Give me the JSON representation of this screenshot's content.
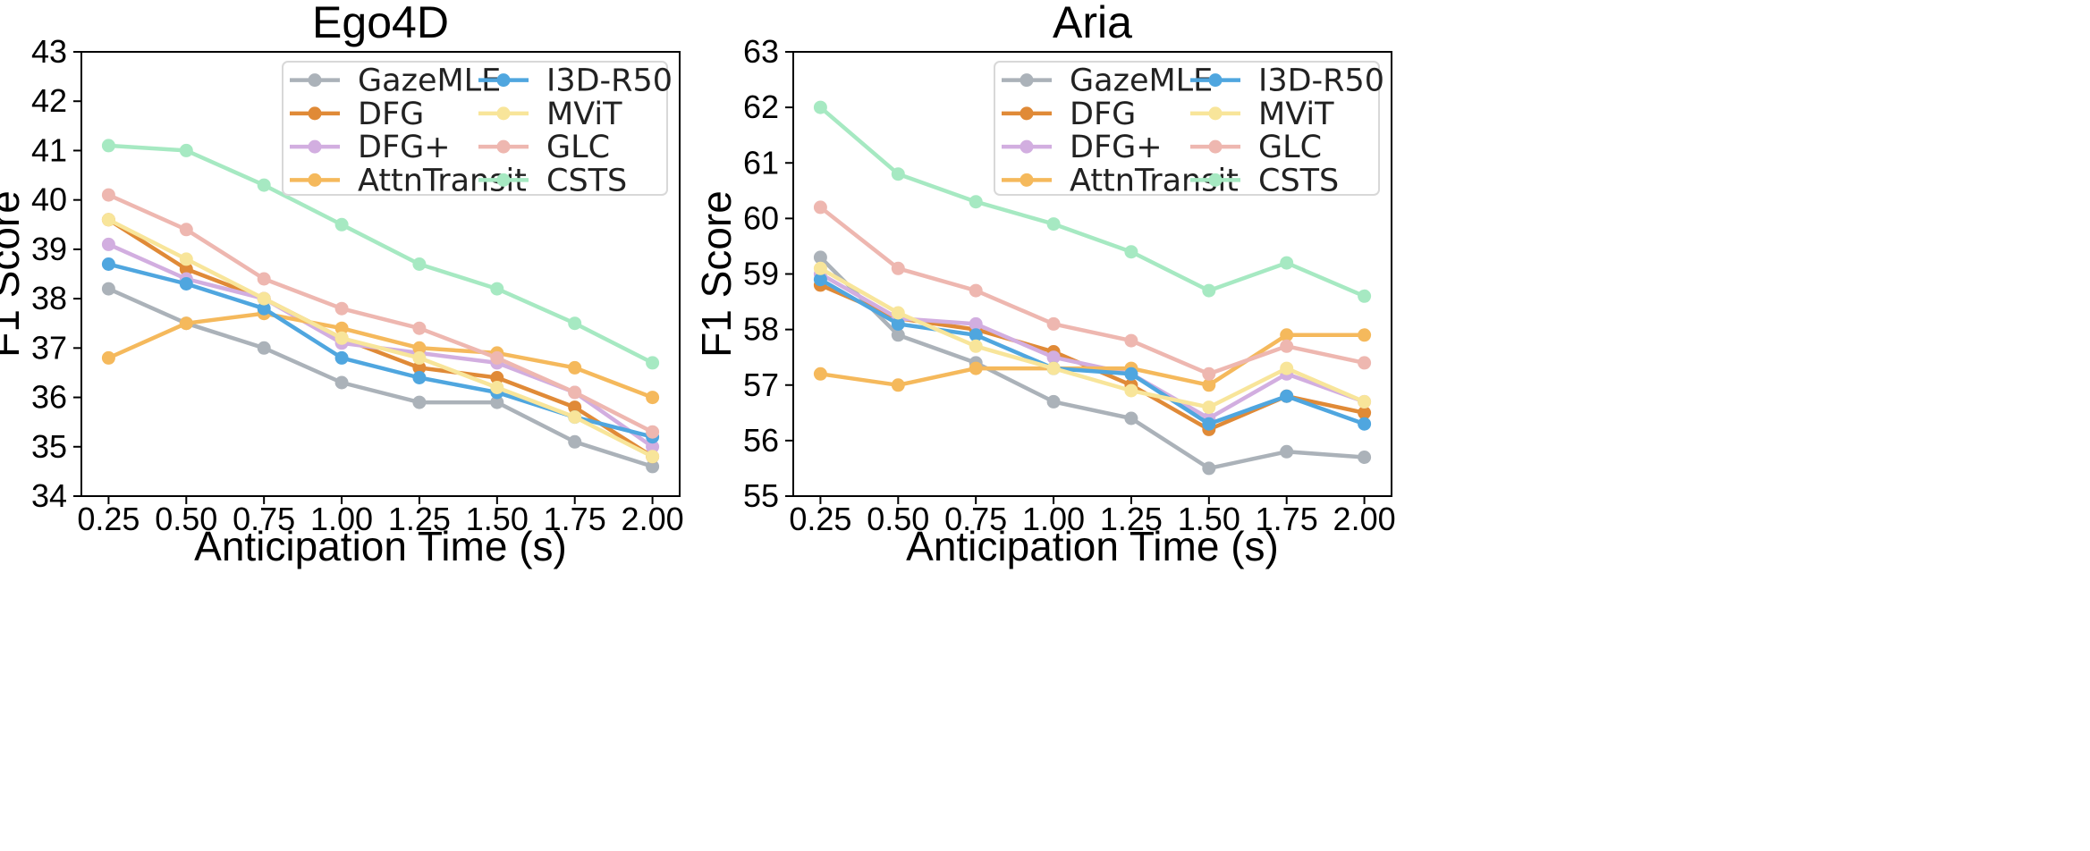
{
  "chart_data": [
    {
      "type": "line",
      "title": "Ego4D",
      "xlabel": "Anticipation Time (s)",
      "ylabel": "F1 Score",
      "x": [
        0.25,
        0.5,
        0.75,
        1.0,
        1.25,
        1.5,
        1.75,
        2.0
      ],
      "x_tick_labels": [
        "0.25",
        "0.50",
        "0.75",
        "1.00",
        "1.25",
        "1.50",
        "1.75",
        "2.00"
      ],
      "ylim": [
        34,
        43
      ],
      "y_ticks": [
        34,
        35,
        36,
        37,
        38,
        39,
        40,
        41,
        42,
        43
      ],
      "grid": false,
      "legend_position": "top-right",
      "legend_columns": 2,
      "series": [
        {
          "name": "GazeMLE",
          "color": "#abb2b9",
          "values": [
            38.2,
            37.5,
            37.0,
            36.3,
            35.9,
            35.9,
            35.1,
            34.6
          ]
        },
        {
          "name": "DFG",
          "color": "#e08a37",
          "values": [
            39.6,
            38.6,
            38.0,
            37.2,
            36.6,
            36.4,
            35.8,
            34.8
          ]
        },
        {
          "name": "DFG+",
          "color": "#d2aee0",
          "values": [
            39.1,
            38.4,
            38.0,
            37.1,
            36.9,
            36.7,
            36.1,
            35.0
          ]
        },
        {
          "name": "AttnTransit",
          "color": "#f5b95c",
          "values": [
            36.8,
            37.5,
            37.7,
            37.4,
            37.0,
            36.9,
            36.6,
            36.0
          ]
        },
        {
          "name": "I3D-R50",
          "color": "#4fa6df",
          "values": [
            38.7,
            38.3,
            37.8,
            36.8,
            36.4,
            36.1,
            35.6,
            35.2
          ]
        },
        {
          "name": "MViT",
          "color": "#f8e59a",
          "values": [
            39.6,
            38.8,
            38.0,
            37.2,
            36.8,
            36.2,
            35.6,
            34.8
          ]
        },
        {
          "name": "GLC",
          "color": "#eeb7b0",
          "values": [
            40.1,
            39.4,
            38.4,
            37.8,
            37.4,
            36.8,
            36.1,
            35.3
          ]
        },
        {
          "name": "CSTS",
          "color": "#a6e9c2",
          "values": [
            41.1,
            41.0,
            40.3,
            39.5,
            38.7,
            38.2,
            37.5,
            36.7
          ]
        }
      ]
    },
    {
      "type": "line",
      "title": "Aria",
      "xlabel": "Anticipation Time (s)",
      "ylabel": "F1 Score",
      "x": [
        0.25,
        0.5,
        0.75,
        1.0,
        1.25,
        1.5,
        1.75,
        2.0
      ],
      "x_tick_labels": [
        "0.25",
        "0.50",
        "0.75",
        "1.00",
        "1.25",
        "1.50",
        "1.75",
        "2.00"
      ],
      "ylim": [
        55,
        63
      ],
      "y_ticks": [
        55,
        56,
        57,
        58,
        59,
        60,
        61,
        62,
        63
      ],
      "grid": false,
      "legend_position": "top-right",
      "legend_columns": 2,
      "series": [
        {
          "name": "GazeMLE",
          "color": "#abb2b9",
          "values": [
            59.3,
            57.9,
            57.4,
            56.7,
            56.4,
            55.5,
            55.8,
            55.7
          ]
        },
        {
          "name": "DFG",
          "color": "#e08a37",
          "values": [
            58.8,
            58.2,
            58.0,
            57.6,
            57.0,
            56.2,
            56.8,
            56.5
          ]
        },
        {
          "name": "DFG+",
          "color": "#d2aee0",
          "values": [
            59.0,
            58.2,
            58.1,
            57.5,
            57.2,
            56.4,
            57.2,
            56.7
          ]
        },
        {
          "name": "AttnTransit",
          "color": "#f5b95c",
          "values": [
            57.2,
            57.0,
            57.3,
            57.3,
            57.3,
            57.0,
            57.9,
            57.9
          ]
        },
        {
          "name": "I3D-R50",
          "color": "#4fa6df",
          "values": [
            58.9,
            58.1,
            57.9,
            57.3,
            57.2,
            56.3,
            56.8,
            56.3
          ]
        },
        {
          "name": "MViT",
          "color": "#f8e59a",
          "values": [
            59.1,
            58.3,
            57.7,
            57.3,
            56.9,
            56.6,
            57.3,
            56.7
          ]
        },
        {
          "name": "GLC",
          "color": "#eeb7b0",
          "values": [
            60.2,
            59.1,
            58.7,
            58.1,
            57.8,
            57.2,
            57.7,
            57.4
          ]
        },
        {
          "name": "CSTS",
          "color": "#a6e9c2",
          "values": [
            62.0,
            60.8,
            60.3,
            59.9,
            59.4,
            58.7,
            59.2,
            58.6
          ]
        }
      ]
    }
  ]
}
